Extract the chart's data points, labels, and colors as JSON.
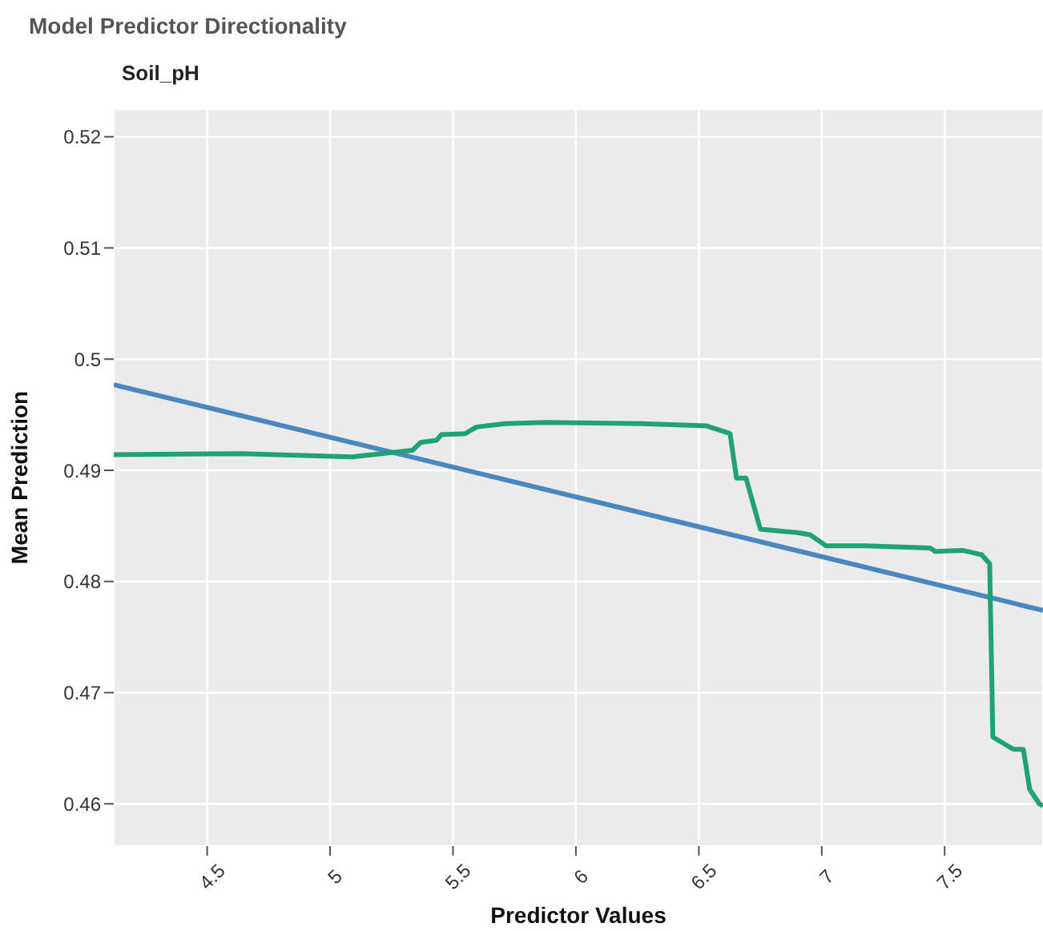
{
  "chart_data": {
    "type": "line",
    "title": "Model Predictor Directionality",
    "subtitle": "Soil_pH",
    "xlabel": "Predictor Values",
    "ylabel": "Mean Prediction",
    "xlim": [
      4.12,
      7.9
    ],
    "ylim": [
      0.4562,
      0.5225
    ],
    "xticks": [
      4.5,
      5,
      5.5,
      6,
      6.5,
      7,
      7.5
    ],
    "yticks": [
      0.46,
      0.47,
      0.48,
      0.49,
      0.5,
      0.51,
      0.52
    ],
    "grid": true,
    "marker": "none",
    "line_style": "solid",
    "series": [
      {
        "color": "#4a86bf",
        "x": [
          4.12,
          7.9
        ],
        "values": [
          0.4977,
          0.4774
        ]
      },
      {
        "color": "#1fa276",
        "x": [
          4.12,
          4.64,
          5.09,
          5.335,
          5.368,
          5.433,
          5.452,
          5.55,
          5.596,
          5.713,
          5.876,
          6.268,
          6.529,
          6.627,
          6.653,
          6.692,
          6.75,
          6.9,
          6.953,
          7.018,
          7.181,
          7.442,
          7.461,
          7.572,
          7.651,
          7.683,
          7.696,
          7.78,
          7.82,
          7.846,
          7.885,
          7.9
        ],
        "values": [
          0.4914,
          0.4915,
          0.4912,
          0.4918,
          0.4925,
          0.4927,
          0.4932,
          0.4933,
          0.4939,
          0.4942,
          0.4943,
          0.4942,
          0.494,
          0.4933,
          0.4893,
          0.4893,
          0.4847,
          0.4844,
          0.4842,
          0.4832,
          0.4832,
          0.483,
          0.4827,
          0.4828,
          0.4824,
          0.4816,
          0.466,
          0.4649,
          0.4649,
          0.4613,
          0.46,
          0.4598
        ]
      }
    ]
  }
}
